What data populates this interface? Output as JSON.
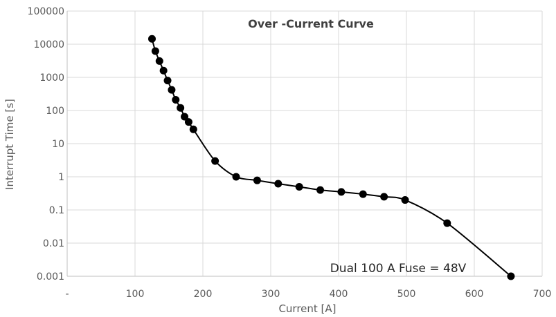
{
  "chart_data": {
    "type": "scatter",
    "title": "Over -Current Curve",
    "xlabel": "Current [A]",
    "ylabel": "Interrupt Time [s]",
    "xlim": [
      0,
      700
    ],
    "ylim": [
      0.001,
      100000
    ],
    "yscale": "log",
    "x_tick_labels": [
      "-",
      "100",
      "200",
      "300",
      "400",
      "500",
      "600",
      "700"
    ],
    "y_tick_labels": [
      "0.001",
      "0.01",
      "0.1",
      "1",
      "10",
      "100",
      "1000",
      "10000",
      "100000"
    ],
    "grid": true,
    "smoothed_line": true,
    "line_color": "#000000",
    "marker_color": "#000000",
    "annotation": "Dual 100 A Fuse = 48V",
    "series": [
      {
        "points": [
          [
            125,
            14500
          ],
          [
            130,
            6200
          ],
          [
            136,
            3100
          ],
          [
            142,
            1600
          ],
          [
            148,
            800
          ],
          [
            154,
            420
          ],
          [
            160,
            210
          ],
          [
            167,
            120
          ],
          [
            173,
            65
          ],
          [
            179,
            45
          ],
          [
            186,
            27
          ],
          [
            218,
            3
          ],
          [
            249,
            1
          ],
          [
            280,
            0.78
          ],
          [
            311,
            0.62
          ],
          [
            342,
            0.5
          ],
          [
            373,
            0.4
          ],
          [
            404,
            0.35
          ],
          [
            436,
            0.3
          ],
          [
            467,
            0.25
          ],
          [
            498,
            0.2
          ],
          [
            560,
            0.04
          ],
          [
            654,
            0.001
          ]
        ]
      }
    ]
  }
}
